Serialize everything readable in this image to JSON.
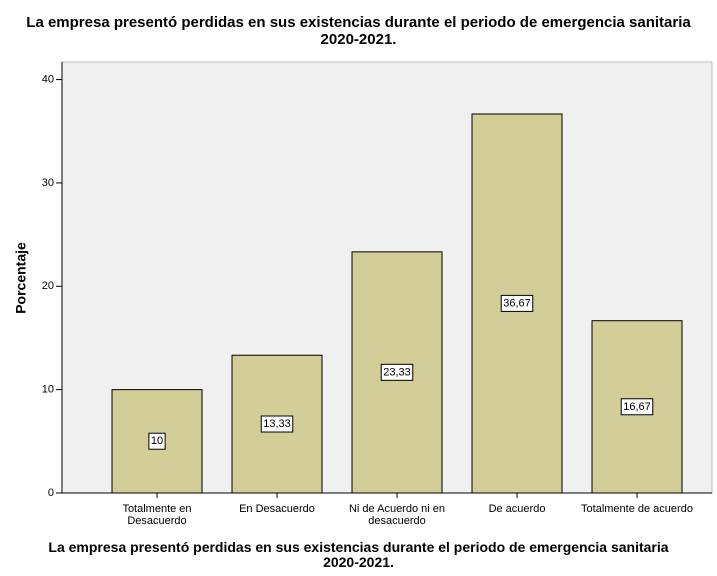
{
  "chart_data": {
    "type": "bar",
    "title": "La empresa presentó perdidas en sus existencias durante el periodo de emergencia sanitaria 2020-2021.",
    "x_label": "La empresa presentó perdidas en sus existencias durante el periodo de emergencia sanitaria 2020-2021.",
    "y_label": "Porcentaje",
    "categories": [
      "Totalmente en Desacuerdo",
      "En Desacuerdo",
      "Ni de Acuerdo ni en desacuerdo",
      "De acuerdo",
      "Totalmente de acuerdo"
    ],
    "values": [
      10,
      13.33,
      23.33,
      36.67,
      16.67
    ],
    "value_labels": [
      "10",
      "13,33",
      "23,33",
      "36,67",
      "16,67"
    ],
    "color": "#d3ce98",
    "ylim": [
      0,
      41.7
    ],
    "yticks": [
      0,
      10,
      20,
      30,
      40
    ]
  }
}
